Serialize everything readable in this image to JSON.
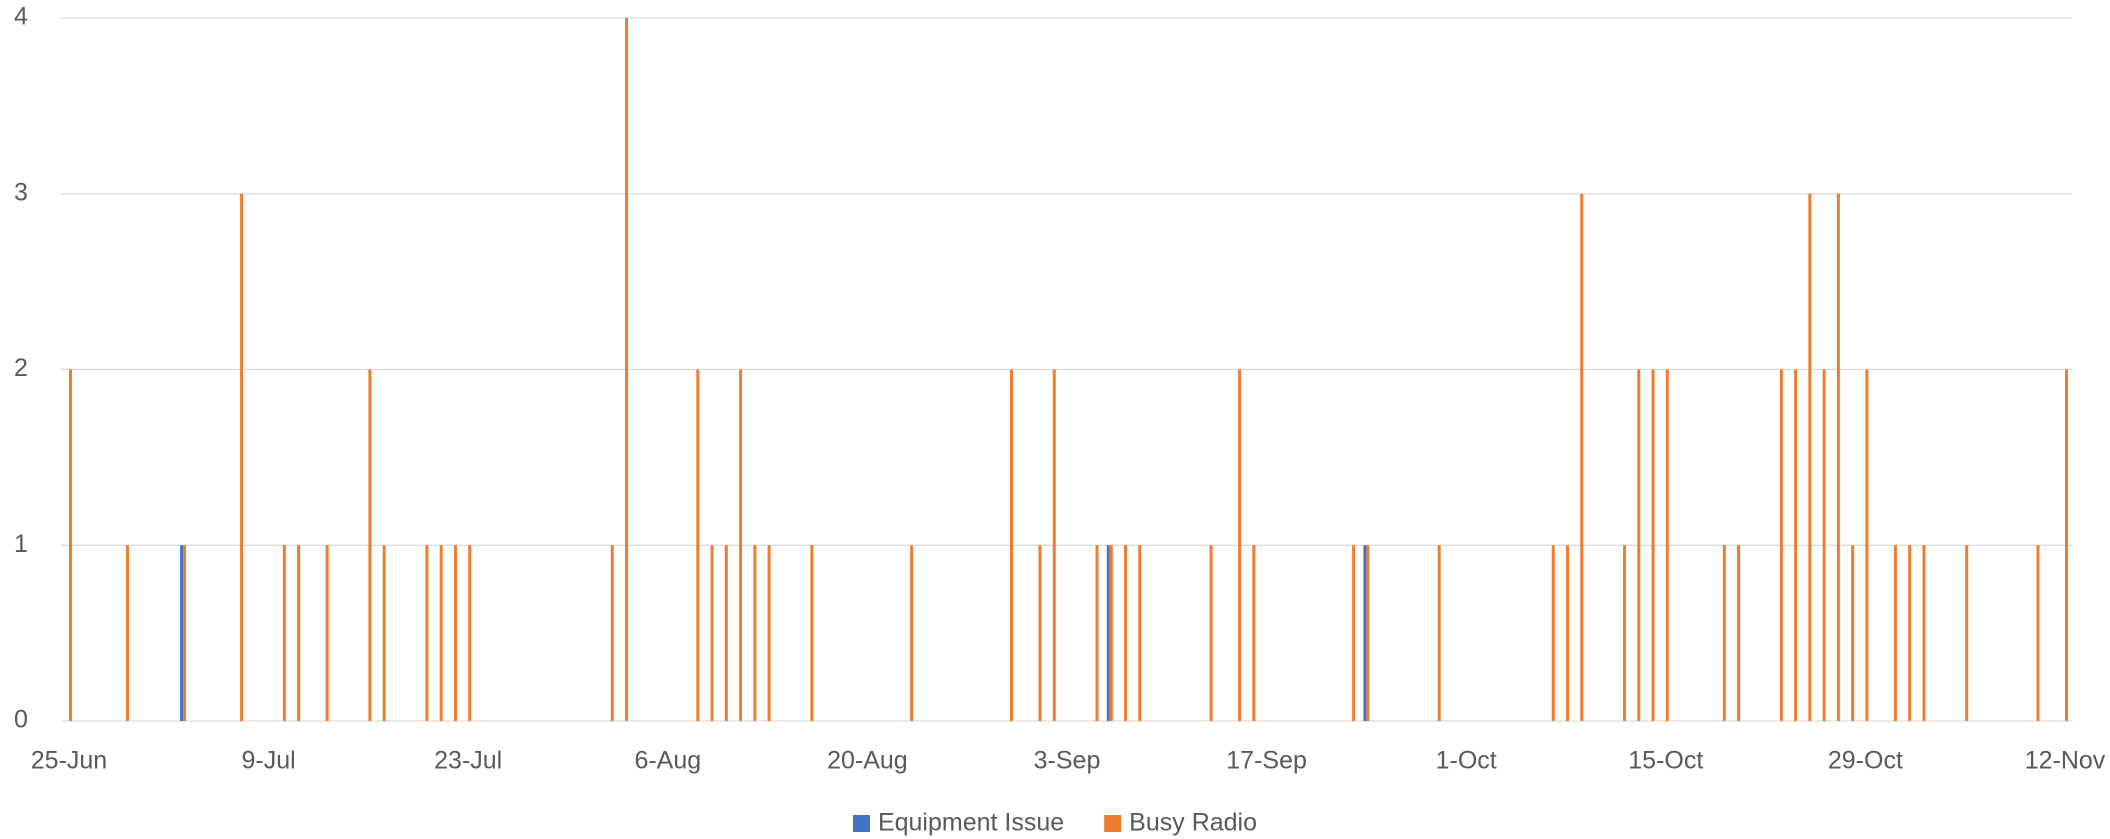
{
  "chart_data": {
    "type": "bar",
    "categories": [
      "25-Jun",
      null,
      null,
      null,
      null,
      null,
      null,
      null,
      null,
      null,
      null,
      null,
      null,
      null,
      "9-Jul",
      null,
      null,
      null,
      null,
      null,
      null,
      null,
      null,
      null,
      null,
      null,
      null,
      null,
      "23-Jul",
      null,
      null,
      null,
      null,
      null,
      null,
      null,
      null,
      null,
      null,
      null,
      null,
      null,
      "6-Aug",
      null,
      null,
      null,
      null,
      null,
      null,
      null,
      null,
      null,
      null,
      null,
      null,
      null,
      "20-Aug",
      null,
      null,
      null,
      null,
      null,
      null,
      null,
      null,
      null,
      null,
      null,
      null,
      null,
      "3-Sep",
      null,
      null,
      null,
      null,
      null,
      null,
      null,
      null,
      null,
      null,
      null,
      null,
      null,
      "17-Sep",
      null,
      null,
      null,
      null,
      null,
      null,
      null,
      null,
      null,
      null,
      null,
      null,
      null,
      "1-Oct",
      null,
      null,
      null,
      null,
      null,
      null,
      null,
      null,
      null,
      null,
      null,
      null,
      null,
      "15-Oct",
      null,
      null,
      null,
      null,
      null,
      null,
      null,
      null,
      null,
      null,
      null,
      null,
      null,
      "29-Oct",
      null,
      null,
      null,
      null,
      null,
      null,
      null,
      null,
      null,
      null,
      null,
      null,
      null,
      "12-Nov"
    ],
    "series": [
      {
        "name": "Equipment Issue",
        "color": "#4472c4",
        "values": [
          0,
          0,
          0,
          0,
          0,
          0,
          0,
          0,
          1,
          0,
          0,
          0,
          0,
          0,
          0,
          0,
          0,
          0,
          0,
          0,
          0,
          0,
          0,
          0,
          0,
          0,
          0,
          0,
          0,
          0,
          0,
          0,
          0,
          0,
          0,
          0,
          0,
          0,
          0,
          0,
          0,
          0,
          0,
          0,
          0,
          0,
          0,
          0,
          0,
          0,
          0,
          0,
          0,
          0,
          0,
          0,
          0,
          0,
          0,
          0,
          0,
          0,
          0,
          0,
          0,
          0,
          0,
          0,
          0,
          0,
          0,
          0,
          0,
          1,
          0,
          0,
          0,
          0,
          0,
          0,
          0,
          0,
          0,
          0,
          0,
          0,
          0,
          0,
          0,
          0,
          0,
          1,
          0,
          0,
          0,
          0,
          0,
          0,
          0,
          0,
          0,
          0,
          0,
          0,
          0,
          0,
          0,
          0,
          0,
          0,
          0,
          0,
          0,
          0,
          0,
          0,
          0,
          0,
          0,
          0,
          0,
          0,
          0,
          0,
          0,
          0,
          0,
          0,
          0,
          0,
          0,
          0,
          0,
          0,
          0,
          0,
          0,
          0,
          0,
          0,
          0
        ]
      },
      {
        "name": "Busy Radio",
        "color": "#ed7d31",
        "values": [
          2,
          0,
          0,
          0,
          1,
          0,
          0,
          0,
          1,
          0,
          0,
          0,
          3,
          0,
          0,
          1,
          1,
          0,
          1,
          0,
          0,
          2,
          1,
          0,
          0,
          1,
          1,
          1,
          1,
          0,
          0,
          0,
          0,
          0,
          0,
          0,
          0,
          0,
          1,
          4,
          0,
          0,
          0,
          0,
          2,
          1,
          1,
          2,
          1,
          1,
          0,
          0,
          1,
          0,
          0,
          0,
          0,
          0,
          0,
          1,
          0,
          0,
          0,
          0,
          0,
          0,
          2,
          0,
          1,
          2,
          0,
          0,
          1,
          1,
          1,
          1,
          0,
          0,
          0,
          0,
          1,
          0,
          2,
          1,
          0,
          0,
          0,
          0,
          0,
          0,
          1,
          1,
          0,
          0,
          0,
          0,
          1,
          0,
          0,
          0,
          0,
          0,
          0,
          0,
          1,
          1,
          3,
          0,
          0,
          1,
          2,
          2,
          2,
          0,
          0,
          0,
          1,
          1,
          0,
          0,
          2,
          2,
          3,
          2,
          3,
          1,
          2,
          0,
          1,
          1,
          1,
          0,
          0,
          1,
          0,
          0,
          0,
          0,
          1,
          0,
          2
        ]
      }
    ],
    "ylim": [
      0,
      4
    ],
    "yticks": [
      0,
      1,
      2,
      3,
      4
    ],
    "grid": true,
    "legend": "bottom"
  }
}
